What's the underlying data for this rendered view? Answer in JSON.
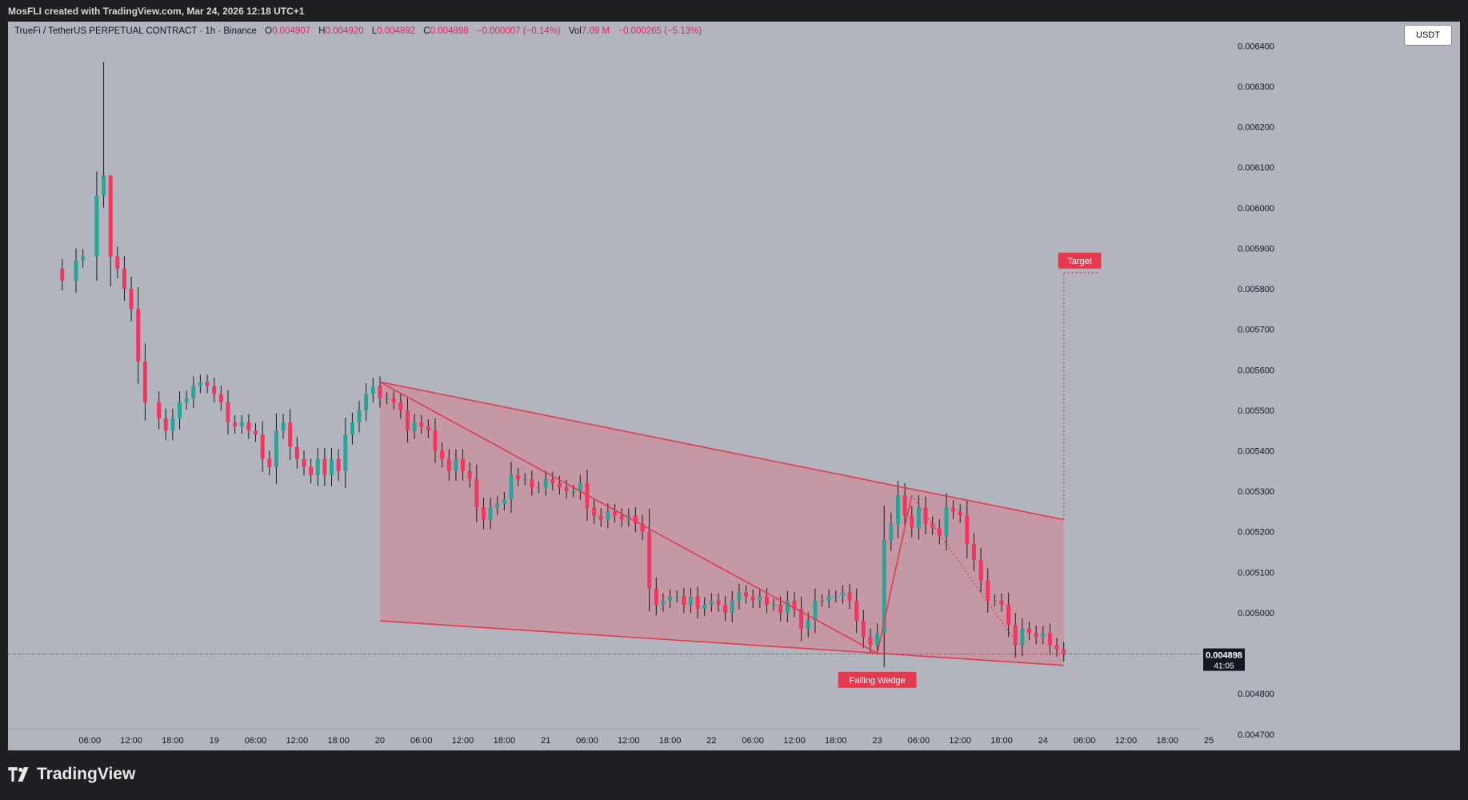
{
  "credit": "MosFLI created with TradingView.com, Mar 24, 2026 12:18 UTC+1",
  "brand": "TradingView",
  "unit_button": "USDT",
  "legend": {
    "symbol": "TrueFi / TetherUS PERPETUAL CONTRACT · 1h · Binance",
    "o_label": "O",
    "o": "0.004907",
    "h_label": "H",
    "h": "0.004920",
    "l_label": "L",
    "l": "0.004892",
    "c_label": "C",
    "c": "0.004898",
    "change": "−0.000007 (−0.14%)",
    "vol_label": "Vol",
    "vol": "7.09 M",
    "vol_change": "−0.000265 (−5.13%)"
  },
  "colors": {
    "up": "#26a69a",
    "down": "#f23660",
    "pattern": "#e53950",
    "pattern_fill": "#d4828f",
    "background": "#b2b5be"
  },
  "chart_data": {
    "type": "candlestick",
    "interval": "1h",
    "ylim": [
      0.00466,
      0.00646
    ],
    "y_ticks": [
      "0.006400",
      "0.006300",
      "0.006200",
      "0.006100",
      "0.006000",
      "0.005900",
      "0.005800",
      "0.005700",
      "0.005600",
      "0.005500",
      "0.005400",
      "0.005300",
      "0.005200",
      "0.005100",
      "0.005000",
      "0.004800",
      "0.004700"
    ],
    "x_ticks": [
      "06:00",
      "12:00",
      "18:00",
      "19",
      "06:00",
      "12:00",
      "18:00",
      "20",
      "06:00",
      "12:00",
      "18:00",
      "21",
      "06:00",
      "12:00",
      "18:00",
      "22",
      "06:00",
      "12:00",
      "18:00",
      "23",
      "06:00",
      "12:00",
      "18:00",
      "24",
      "06:00",
      "12:00",
      "18:00",
      "25"
    ],
    "x_tick_hours": [
      6,
      12,
      18,
      24,
      30,
      36,
      42,
      48,
      54,
      60,
      66,
      72,
      78,
      84,
      90,
      96,
      102,
      108,
      114,
      120,
      126,
      132,
      138,
      144,
      150,
      156,
      162,
      168
    ],
    "last_price": "0.004898",
    "countdown": "41:05",
    "close_path": [
      [
        0,
        0.00585
      ],
      [
        2,
        0.00582
      ],
      [
        4,
        0.00587
      ],
      [
        5,
        0.00588
      ],
      [
        7,
        0.00603
      ],
      [
        8,
        0.00608
      ],
      [
        9,
        0.00588
      ],
      [
        10,
        0.00585
      ],
      [
        11,
        0.0058
      ],
      [
        12,
        0.00575
      ],
      [
        13,
        0.00562
      ],
      [
        14,
        0.00552
      ],
      [
        16,
        0.00548
      ],
      [
        17,
        0.00545
      ],
      [
        18,
        0.00548
      ],
      [
        19,
        0.00552
      ],
      [
        20,
        0.00553
      ],
      [
        21,
        0.00556
      ],
      [
        22,
        0.00557
      ],
      [
        23,
        0.00556
      ],
      [
        24,
        0.00554
      ],
      [
        25,
        0.00552
      ],
      [
        26,
        0.00547
      ],
      [
        27,
        0.00546
      ],
      [
        28,
        0.00547
      ],
      [
        29,
        0.00545
      ],
      [
        30,
        0.00544
      ],
      [
        31,
        0.00538
      ],
      [
        32,
        0.00536
      ],
      [
        33,
        0.00545
      ],
      [
        34,
        0.00547
      ],
      [
        35,
        0.00541
      ],
      [
        36,
        0.00538
      ],
      [
        37,
        0.00536
      ],
      [
        38,
        0.00534
      ],
      [
        39,
        0.00538
      ],
      [
        40,
        0.00534
      ],
      [
        41,
        0.00538
      ],
      [
        42,
        0.00535
      ],
      [
        43,
        0.00544
      ],
      [
        44,
        0.00547
      ],
      [
        45,
        0.0055
      ],
      [
        46,
        0.00554
      ],
      [
        47,
        0.00556
      ],
      [
        48,
        0.00553
      ],
      [
        49,
        0.00553
      ],
      [
        50,
        0.00552
      ],
      [
        51,
        0.0055
      ],
      [
        52,
        0.00545
      ],
      [
        53,
        0.00547
      ],
      [
        54,
        0.00546
      ],
      [
        55,
        0.00545
      ],
      [
        56,
        0.0054
      ],
      [
        57,
        0.00538
      ],
      [
        58,
        0.00535
      ],
      [
        59,
        0.00538
      ],
      [
        60,
        0.00535
      ],
      [
        61,
        0.00533
      ],
      [
        62,
        0.00526
      ],
      [
        63,
        0.00523
      ],
      [
        64,
        0.00526
      ],
      [
        65,
        0.00527
      ],
      [
        66,
        0.00528
      ],
      [
        67,
        0.00534
      ],
      [
        68,
        0.00533
      ],
      [
        69,
        0.00533
      ],
      [
        70,
        0.00531
      ],
      [
        71,
        0.00531
      ],
      [
        72,
        0.00533
      ],
      [
        73,
        0.00532
      ],
      [
        74,
        0.00531
      ],
      [
        75,
        0.0053
      ],
      [
        76,
        0.0053
      ],
      [
        77,
        0.00532
      ],
      [
        78,
        0.00526
      ],
      [
        79,
        0.00524
      ],
      [
        80,
        0.00523
      ],
      [
        81,
        0.00525
      ],
      [
        82,
        0.00524
      ],
      [
        83,
        0.00523
      ],
      [
        84,
        0.00524
      ],
      [
        85,
        0.00522
      ],
      [
        86,
        0.0052
      ],
      [
        87,
        0.00506
      ],
      [
        88,
        0.00502
      ],
      [
        89,
        0.00503
      ],
      [
        90,
        0.00504
      ],
      [
        91,
        0.00504
      ],
      [
        92,
        0.00502
      ],
      [
        93,
        0.00504
      ],
      [
        94,
        0.00501
      ],
      [
        95,
        0.00502
      ],
      [
        96,
        0.00503
      ],
      [
        97,
        0.00502
      ],
      [
        98,
        0.005
      ],
      [
        99,
        0.00503
      ],
      [
        100,
        0.00505
      ],
      [
        101,
        0.00504
      ],
      [
        102,
        0.00503
      ],
      [
        103,
        0.00504
      ],
      [
        104,
        0.00502
      ],
      [
        105,
        0.00502
      ],
      [
        106,
        0.005
      ],
      [
        107,
        0.00503
      ],
      [
        108,
        0.00501
      ],
      [
        109,
        0.00496
      ],
      [
        110,
        0.00498
      ],
      [
        111,
        0.00503
      ],
      [
        112,
        0.00503
      ],
      [
        113,
        0.00504
      ],
      [
        114,
        0.00504
      ],
      [
        115,
        0.00505
      ],
      [
        116,
        0.00503
      ],
      [
        117,
        0.00498
      ],
      [
        118,
        0.00494
      ],
      [
        119,
        0.00492
      ],
      [
        120,
        0.00495
      ],
      [
        121,
        0.00518
      ],
      [
        122,
        0.00522
      ],
      [
        123,
        0.00529
      ],
      [
        124,
        0.00524
      ],
      [
        125,
        0.00521
      ],
      [
        126,
        0.00526
      ],
      [
        127,
        0.00522
      ],
      [
        128,
        0.00521
      ],
      [
        129,
        0.00519
      ],
      [
        130,
        0.00526
      ],
      [
        131,
        0.00525
      ],
      [
        132,
        0.00524
      ],
      [
        133,
        0.00517
      ],
      [
        134,
        0.00513
      ],
      [
        135,
        0.00508
      ],
      [
        136,
        0.00503
      ],
      [
        137,
        0.00503
      ],
      [
        138,
        0.00502
      ],
      [
        139,
        0.00497
      ],
      [
        140,
        0.00492
      ],
      [
        141,
        0.00496
      ],
      [
        142,
        0.00495
      ],
      [
        143,
        0.00494
      ],
      [
        144,
        0.00495
      ],
      [
        145,
        0.00492
      ],
      [
        146,
        0.00491
      ],
      [
        147,
        0.004898
      ]
    ],
    "spikes": [
      [
        8,
        0.00636
      ],
      [
        9,
        0.00604
      ]
    ],
    "annotations": {
      "pattern_label": "Falling Wedge",
      "target_label": "Target",
      "upper_line": [
        [
          48,
          0.00557
        ],
        [
          147,
          0.00523
        ]
      ],
      "lower_line": [
        [
          48,
          0.00498
        ],
        [
          147,
          0.00487
        ]
      ],
      "inner_line": [
        [
          48,
          0.00557
        ],
        [
          120,
          0.0049
        ]
      ],
      "rise_line": [
        [
          120,
          0.0049
        ],
        [
          125,
          0.00529
        ]
      ],
      "decline_line": [
        [
          125,
          0.00529
        ],
        [
          140,
          0.00493
        ]
      ],
      "target_price": 0.00584,
      "target_x": 147,
      "target_end_x": 152,
      "label_price": 0.00484
    }
  }
}
